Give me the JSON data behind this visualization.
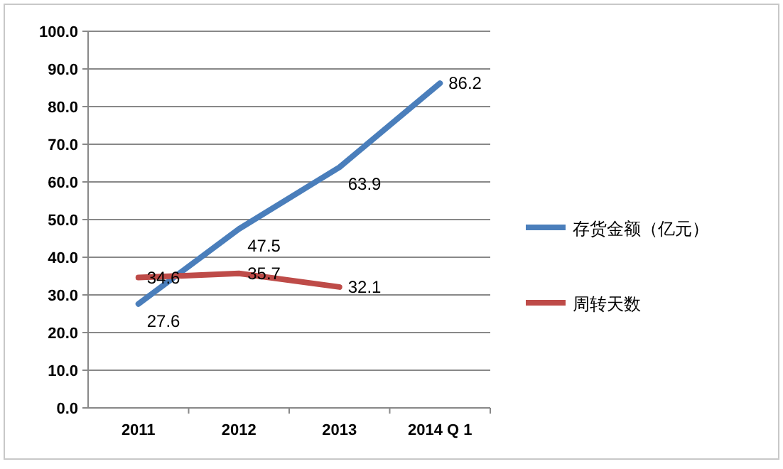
{
  "chart_data": {
    "type": "line",
    "categories": [
      "2011",
      "2012",
      "2013",
      "2014 Q 1"
    ],
    "series": [
      {
        "name": "存货金额（亿元）",
        "color": "#4a7ebb",
        "values": [
          27.6,
          47.5,
          63.9,
          86.2
        ]
      },
      {
        "name": "周转天数",
        "color": "#be4b48",
        "values": [
          34.6,
          35.7,
          32.1,
          null
        ]
      }
    ],
    "ylim": [
      0,
      100
    ],
    "yticks": [
      {
        "value": 0,
        "label": "0.0"
      },
      {
        "value": 10,
        "label": "10.0"
      },
      {
        "value": 20,
        "label": "20.0"
      },
      {
        "value": 30,
        "label": "30.0"
      },
      {
        "value": 40,
        "label": "40.0"
      },
      {
        "value": 50,
        "label": "50.0"
      },
      {
        "value": 60,
        "label": "60.0"
      },
      {
        "value": 70,
        "label": "70.0"
      },
      {
        "value": 80,
        "label": "80.0"
      },
      {
        "value": 90,
        "label": "90.0"
      },
      {
        "value": 100,
        "label": "100.0"
      }
    ],
    "grid": "y",
    "legend": "right",
    "data_labels": true,
    "marker": "none",
    "line_style": "solid"
  }
}
